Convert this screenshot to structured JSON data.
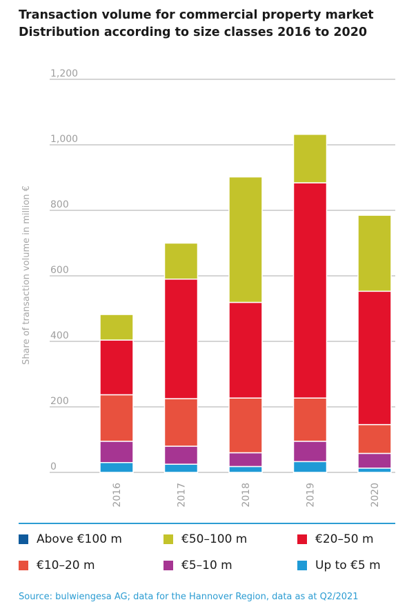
{
  "title_line1": "Transaction volume for commercial property market",
  "title_line2": "Distribution according to size classes 2016 to 2020",
  "source": "Source: bulwiengesa AG; data for the Hannover Region, data as at Q2/2021",
  "chart_data": {
    "type": "bar",
    "stacked": true,
    "title": "Transaction volume for commercial property market",
    "subtitle": "Distribution according to size classes 2016 to 2020",
    "xlabel": "",
    "ylabel": "Share of transaction volume in million €",
    "ylim": [
      0,
      1200
    ],
    "y_ticks": [
      0,
      200,
      400,
      600,
      800,
      1000,
      1200
    ],
    "y_tick_labels": [
      "0",
      "200",
      "400",
      "600",
      "800",
      "1,000",
      "1,200"
    ],
    "grid": true,
    "legend_position": "bottom",
    "categories": [
      "2016",
      "2017",
      "2018",
      "2019",
      "2020"
    ],
    "series": [
      {
        "name": "Above €100 m",
        "color": "#0f5a9c",
        "values": [
          0,
          0,
          0,
          0,
          0
        ]
      },
      {
        "name": "Up to €5 m",
        "color": "#1f9ad6",
        "values": [
          30,
          25,
          18,
          33,
          13
        ]
      },
      {
        "name": "€5–10 m",
        "color": "#a63592",
        "values": [
          65,
          55,
          42,
          62,
          45
        ]
      },
      {
        "name": "€10–20 m",
        "color": "#e8513e",
        "values": [
          142,
          145,
          167,
          132,
          88
        ]
      },
      {
        "name": "€20–50 m",
        "color": "#e3122b",
        "values": [
          167,
          365,
          292,
          657,
          407
        ]
      },
      {
        "name": "€50–100 m",
        "color": "#c3c32b",
        "values": [
          78,
          110,
          383,
          148,
          232
        ]
      }
    ]
  },
  "legend": [
    {
      "label": "Above €100 m",
      "color": "#0f5a9c"
    },
    {
      "label": "€50–100 m",
      "color": "#c3c32b"
    },
    {
      "label": "€20–50 m",
      "color": "#e3122b"
    },
    {
      "label": "€10–20 m",
      "color": "#e8513e"
    },
    {
      "label": "€5–10 m",
      "color": "#a63592"
    },
    {
      "label": "Up to €5 m",
      "color": "#1f9ad6"
    }
  ]
}
